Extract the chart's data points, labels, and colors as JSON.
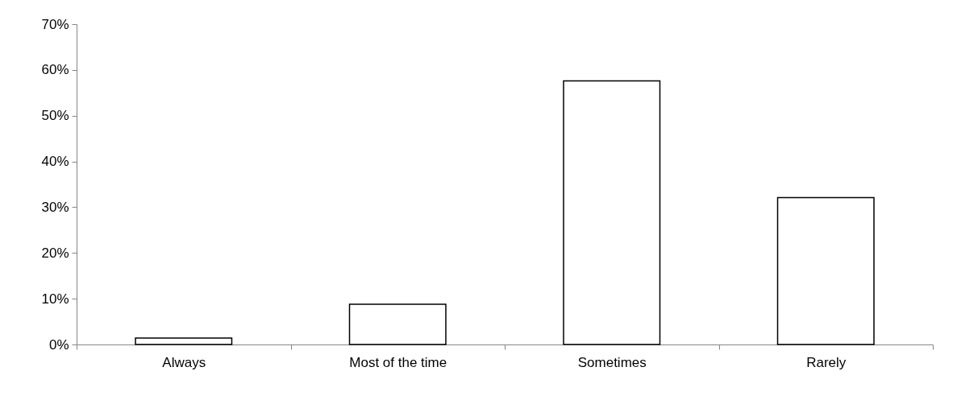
{
  "chart_data": {
    "type": "bar",
    "categories": [
      "Always",
      "Most of the time",
      "Sometimes",
      "Rarely"
    ],
    "values": [
      1.4,
      8.8,
      57.6,
      32.1
    ],
    "color": "#ffffff",
    "ylim": [
      0,
      70
    ],
    "yticks": [
      {
        "value": 0,
        "label": "0%"
      },
      {
        "value": 10,
        "label": "10%"
      },
      {
        "value": 20,
        "label": "20%"
      },
      {
        "value": 30,
        "label": "30%"
      },
      {
        "value": 40,
        "label": "40%"
      },
      {
        "value": 50,
        "label": "50%"
      },
      {
        "value": 60,
        "label": "60%"
      },
      {
        "value": 70,
        "label": "70%"
      }
    ],
    "grid": false
  }
}
